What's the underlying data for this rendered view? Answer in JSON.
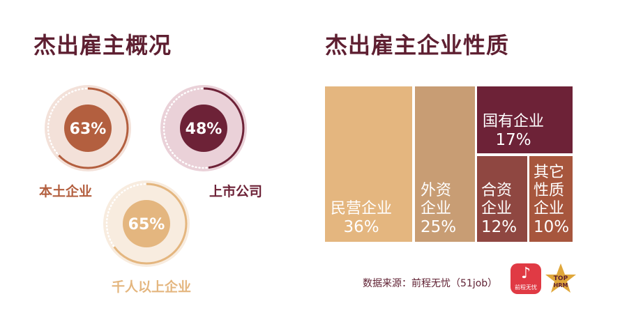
{
  "titles": {
    "left": "杰出雇主概况",
    "right": "杰出雇主企业性质"
  },
  "chart_data": [
    {
      "type": "donut",
      "rings": [
        {
          "name": "本土企业",
          "label": "63%",
          "value": 63,
          "color": "#b35f3f",
          "outer_color": "#f3e1d9"
        },
        {
          "name": "上市公司",
          "label": "48%",
          "value": 48,
          "color": "#6d2237",
          "outer_color": "#ead1d8"
        },
        {
          "name": "千人以上企业",
          "label": "65%",
          "value": 65,
          "color": "#e4b67f",
          "outer_color": "#f8ecdf"
        }
      ]
    },
    {
      "type": "treemap",
      "items": [
        {
          "name": "民营企业",
          "label": "36%",
          "value": 36,
          "color": "#e4b67f"
        },
        {
          "name": "外资企业",
          "lines": [
            "外资",
            "企业"
          ],
          "label": "25%",
          "value": 25,
          "color": "#c89d74"
        },
        {
          "name": "国有企业",
          "label": "17%",
          "value": 17,
          "color": "#6d2237"
        },
        {
          "name": "合资企业",
          "lines": [
            "合资",
            "企业"
          ],
          "label": "12%",
          "value": 12,
          "color": "#8f4741"
        },
        {
          "name": "其它性质企业",
          "lines": [
            "其它",
            "性质",
            "企业"
          ],
          "label": "10%",
          "value": 10,
          "color": "#a7563d"
        }
      ]
    }
  ],
  "footer": {
    "source": "数据来源：前程无忧（51job）",
    "logo_51job": "前程无忧",
    "logo_top_line1": "TOP",
    "logo_top_line2": "HRM"
  }
}
